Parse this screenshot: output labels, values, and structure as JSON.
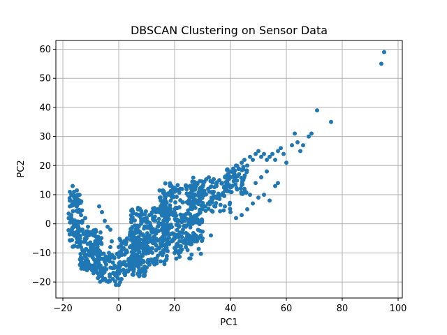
{
  "chart_data": {
    "type": "scatter",
    "title": "DBSCAN Clustering on Sensor Data",
    "xlabel": "PC1",
    "ylabel": "PC2",
    "xlim": [
      -22.5,
      101.5
    ],
    "ylim": [
      -25.5,
      63
    ],
    "x_ticks": [
      -20,
      0,
      20,
      40,
      60,
      80,
      100
    ],
    "y_ticks": [
      -20,
      -10,
      0,
      10,
      20,
      30,
      40,
      50,
      60
    ],
    "x_tick_labels": [
      "−20",
      "0",
      "20",
      "40",
      "60",
      "80",
      "100"
    ],
    "y_tick_labels": [
      "−20",
      "−10",
      "0",
      "10",
      "20",
      "30",
      "40",
      "50",
      "60"
    ],
    "grid": true,
    "legend": "none",
    "point_color": "#1f77b4",
    "series": [
      {
        "values": "dense cloud of several thousand points (approximated)",
        "points": [
          [
            -17.5,
            11
          ],
          [
            -17,
            10
          ],
          [
            -16.5,
            13
          ],
          [
            -16,
            11
          ],
          [
            -15.5,
            9
          ],
          [
            -15,
            11.5
          ],
          [
            -14.5,
            10
          ],
          [
            -14,
            8
          ],
          [
            -17.5,
            6
          ],
          [
            -17,
            3
          ],
          [
            -16.5,
            1
          ],
          [
            -16,
            -1
          ],
          [
            -15.5,
            -3
          ],
          [
            -15,
            -5
          ],
          [
            -14.5,
            -6
          ],
          [
            -14,
            -7
          ],
          [
            -13.5,
            -8
          ],
          [
            -13,
            -9
          ],
          [
            -12.5,
            -10
          ],
          [
            -12,
            -11
          ],
          [
            -11.5,
            -12
          ],
          [
            -11,
            -13
          ],
          [
            -10.5,
            -14
          ],
          [
            -10,
            -15
          ],
          [
            -9.5,
            -16
          ],
          [
            -9,
            -17
          ],
          [
            -8.5,
            -16
          ],
          [
            -8,
            -15
          ],
          [
            -7.5,
            -17
          ],
          [
            -7,
            -18
          ],
          [
            -6.5,
            -17
          ],
          [
            -6,
            -18
          ],
          [
            -5.5,
            -19
          ],
          [
            -5,
            -16
          ],
          [
            -4.5,
            -14
          ],
          [
            -4,
            -12
          ],
          [
            -3.5,
            -10
          ],
          [
            -3,
            -8
          ],
          [
            -2.5,
            -6
          ],
          [
            -7,
            6
          ],
          [
            -6,
            4
          ],
          [
            -5,
            1
          ],
          [
            -4,
            -1
          ],
          [
            -3,
            -2
          ],
          [
            -12,
            2
          ],
          [
            -11,
            -1
          ],
          [
            -10,
            -3
          ],
          [
            -9,
            -4
          ],
          [
            -8,
            -6
          ],
          [
            -13,
            1
          ],
          [
            -14,
            4
          ],
          [
            -15,
            6
          ],
          [
            -13,
            -2
          ],
          [
            -12,
            -5
          ],
          [
            -10,
            -8
          ],
          [
            -9,
            -9
          ],
          [
            -8,
            -10
          ],
          [
            -7,
            -11
          ],
          [
            -6,
            -12
          ],
          [
            -5,
            -13
          ],
          [
            -1,
            -21
          ],
          [
            0,
            -21
          ],
          [
            0.5,
            -20
          ],
          [
            1,
            -19
          ],
          [
            2,
            -17
          ],
          [
            3,
            -16
          ],
          [
            4,
            -15
          ],
          [
            5,
            -14
          ],
          [
            6,
            -13
          ],
          [
            7,
            -12
          ],
          [
            8,
            -11
          ],
          [
            9,
            -10
          ],
          [
            10,
            -9
          ],
          [
            0,
            -8
          ],
          [
            1,
            -7
          ],
          [
            2,
            -6
          ],
          [
            3,
            -5
          ],
          [
            4,
            -4
          ],
          [
            5,
            -3
          ],
          [
            6,
            -2
          ],
          [
            7,
            -1
          ],
          [
            8,
            0
          ],
          [
            9,
            1
          ],
          [
            10,
            2
          ],
          [
            11,
            3
          ],
          [
            12,
            4
          ],
          [
            13,
            5
          ],
          [
            14,
            5
          ],
          [
            15,
            6
          ],
          [
            16,
            6
          ],
          [
            17,
            5
          ],
          [
            18,
            4
          ],
          [
            5,
            -10
          ],
          [
            6,
            -9
          ],
          [
            7,
            -8
          ],
          [
            8,
            -7
          ],
          [
            9,
            -6
          ],
          [
            10,
            -5
          ],
          [
            11,
            -4
          ],
          [
            12,
            -3
          ],
          [
            13,
            -2
          ],
          [
            14,
            -1
          ],
          [
            15,
            0
          ],
          [
            16,
            1
          ],
          [
            17,
            2
          ],
          [
            18,
            3
          ],
          [
            19,
            4
          ],
          [
            20,
            5
          ],
          [
            10,
            -15
          ],
          [
            11,
            -14
          ],
          [
            12,
            -13
          ],
          [
            13,
            -12
          ],
          [
            14,
            -11
          ],
          [
            15,
            -10
          ],
          [
            16,
            -9
          ],
          [
            17,
            -8
          ],
          [
            18,
            -7
          ],
          [
            19,
            -6
          ],
          [
            20,
            -5
          ],
          [
            21,
            -4
          ],
          [
            22,
            -3
          ],
          [
            23,
            -2
          ],
          [
            24,
            -1
          ],
          [
            25,
            0
          ],
          [
            26,
            1
          ],
          [
            27,
            2
          ],
          [
            28,
            3
          ],
          [
            29,
            4
          ],
          [
            30,
            5
          ],
          [
            31,
            6
          ],
          [
            32,
            7
          ],
          [
            20,
            -10
          ],
          [
            22,
            -9
          ],
          [
            24,
            -8
          ],
          [
            26,
            -7
          ],
          [
            28,
            -6
          ],
          [
            30,
            -5
          ],
          [
            33,
            -4
          ],
          [
            18,
            10
          ],
          [
            20,
            11
          ],
          [
            22,
            12
          ],
          [
            24,
            13
          ],
          [
            26,
            12
          ],
          [
            28,
            14
          ],
          [
            30,
            13
          ],
          [
            32,
            12
          ],
          [
            34,
            11
          ],
          [
            35,
            13
          ],
          [
            36,
            15
          ],
          [
            37,
            14
          ],
          [
            38,
            16
          ],
          [
            39,
            17
          ],
          [
            40,
            18
          ],
          [
            41,
            19
          ],
          [
            42,
            20
          ],
          [
            43,
            19
          ],
          [
            44,
            21
          ],
          [
            45,
            22
          ],
          [
            46,
            20
          ],
          [
            47,
            23
          ],
          [
            48,
            22
          ],
          [
            49,
            24
          ],
          [
            50,
            25
          ],
          [
            51,
            23
          ],
          [
            52,
            24
          ],
          [
            53,
            22
          ],
          [
            54,
            23
          ],
          [
            55,
            24
          ],
          [
            56,
            22
          ],
          [
            57,
            25
          ],
          [
            58,
            26
          ],
          [
            59,
            24
          ],
          [
            60,
            21
          ],
          [
            62,
            27
          ],
          [
            63,
            31
          ],
          [
            64,
            28
          ],
          [
            65,
            25
          ],
          [
            66,
            27
          ],
          [
            68,
            30
          ],
          [
            69,
            31
          ],
          [
            71,
            39
          ],
          [
            76,
            35
          ],
          [
            94,
            55
          ],
          [
            95,
            59
          ],
          [
            38,
            6
          ],
          [
            40,
            4
          ],
          [
            42,
            2
          ],
          [
            44,
            3
          ],
          [
            46,
            5
          ],
          [
            48,
            7
          ],
          [
            50,
            9
          ],
          [
            52,
            10
          ],
          [
            54,
            8
          ],
          [
            56,
            13
          ],
          [
            57,
            14
          ],
          [
            45,
            12
          ],
          [
            47,
            10
          ],
          [
            49,
            14
          ],
          [
            51,
            16
          ],
          [
            53,
            18
          ]
        ]
      }
    ]
  }
}
